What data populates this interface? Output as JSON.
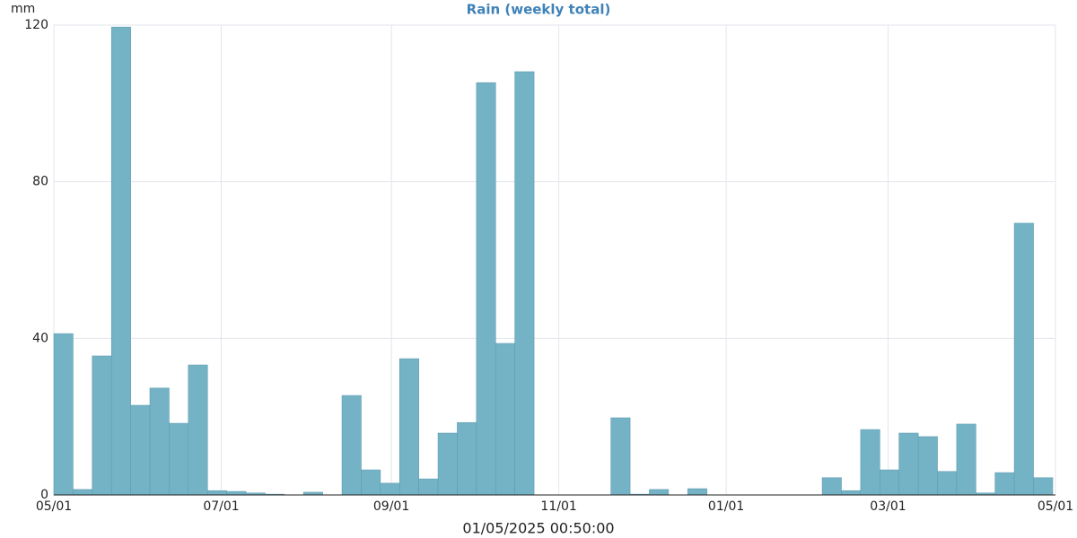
{
  "chart_data": {
    "type": "histogram",
    "title": "Rain (weekly total)",
    "ylabel": "mm",
    "xlabel": "01/05/2025 00:50:00",
    "bins": [
      0,
      7,
      14,
      21,
      28,
      35,
      42,
      49,
      56,
      63,
      70,
      77,
      84,
      91,
      98,
      105,
      112,
      119,
      126,
      133,
      140,
      147,
      154,
      161,
      168,
      175,
      182,
      189,
      196,
      203,
      210,
      217,
      224,
      231,
      238,
      245,
      252,
      259,
      266,
      273,
      280,
      287,
      294,
      301,
      308,
      315,
      322,
      329,
      336,
      343,
      350,
      357,
      364
    ],
    "values": [
      41.2,
      1.4,
      35.5,
      119.5,
      22.9,
      27.3,
      18.3,
      33.2,
      1.1,
      0.9,
      0.5,
      0.2,
      0,
      0.7,
      0,
      25.4,
      6.4,
      3.0,
      34.8,
      4.1,
      15.8,
      18.5,
      105.3,
      38.7,
      108.1,
      0,
      0,
      0,
      0,
      19.7,
      0.2,
      1.4,
      0,
      1.6,
      0,
      0,
      0,
      0,
      0,
      0,
      4.4,
      1.1,
      16.7,
      6.4,
      15.8,
      14.9,
      6.0,
      18.1,
      0.5,
      5.7,
      69.4,
      4.4
    ],
    "color": "#74b3c6",
    "xlim": [
      0,
      365
    ],
    "xticks": [
      {
        "value": 0,
        "label": "05/01"
      },
      {
        "value": 61,
        "label": "07/01"
      },
      {
        "value": 123,
        "label": "09/01"
      },
      {
        "value": 184,
        "label": "11/01"
      },
      {
        "value": 245,
        "label": "01/01"
      },
      {
        "value": 304,
        "label": "03/01"
      },
      {
        "value": 365,
        "label": "05/01"
      }
    ],
    "ylim": [
      0,
      120
    ],
    "yticks": [
      0,
      40,
      80,
      120
    ],
    "grid": true
  }
}
